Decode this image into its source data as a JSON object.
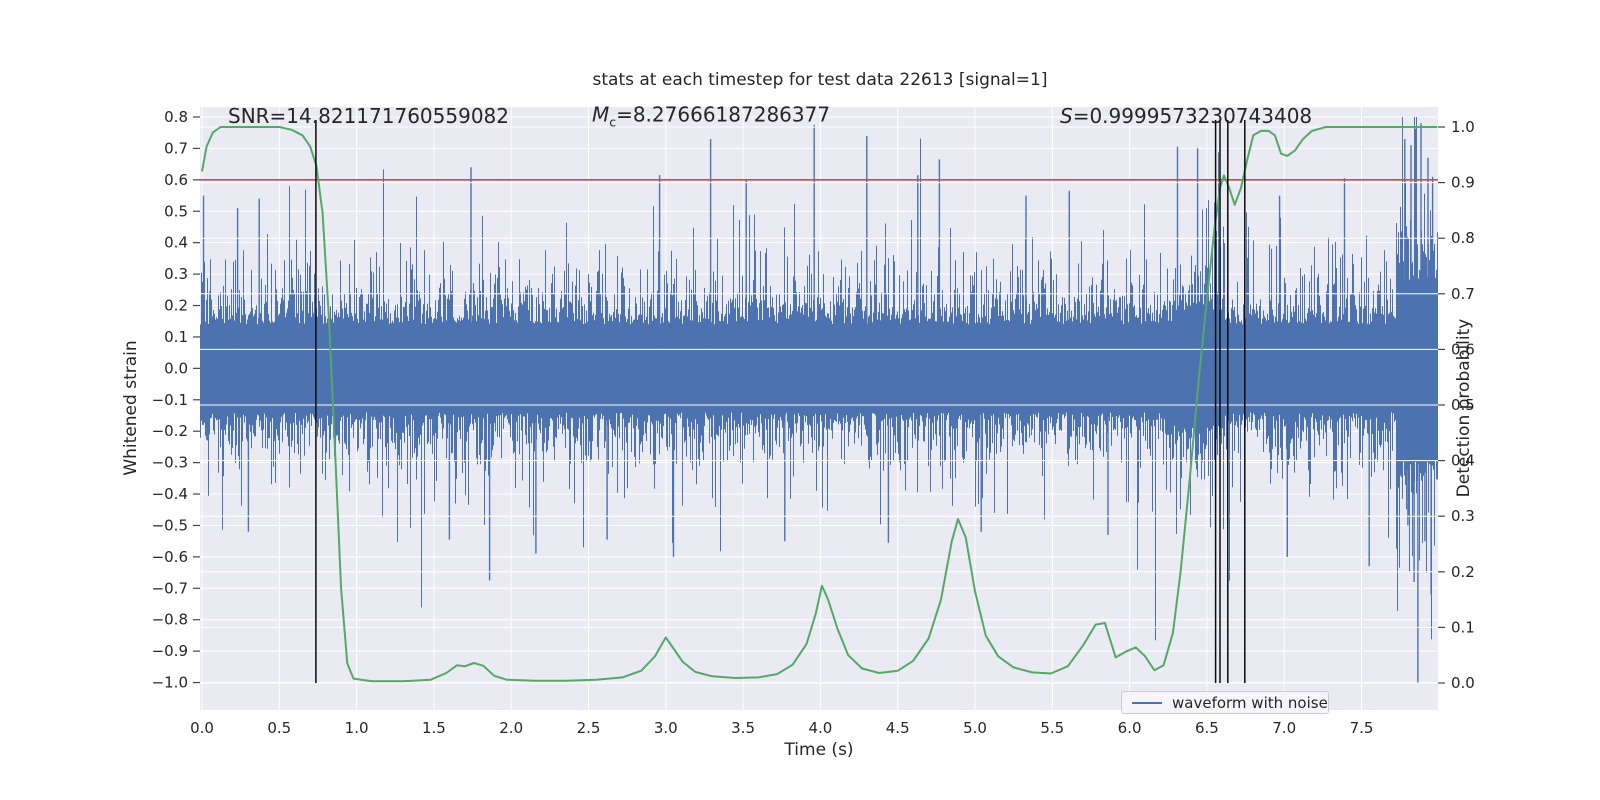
{
  "chart_data": {
    "type": "line",
    "title": "stats at each timestep for test data 22613 [signal=1]",
    "xlabel": "Time (s)",
    "ylabel_left": "Whitened strain",
    "ylabel_right": "Detection probability",
    "xlim": [
      0.0,
      8.0
    ],
    "ylim_left": [
      -1.087,
      0.832
    ],
    "ylim_right": [
      -0.05,
      1.05
    ],
    "grid": true,
    "x_ticks": [
      0.0,
      0.5,
      1.0,
      1.5,
      2.0,
      2.5,
      3.0,
      3.5,
      4.0,
      4.5,
      5.0,
      5.5,
      6.0,
      6.5,
      7.0,
      7.5
    ],
    "y_ticks_left": [
      0.8,
      0.7,
      0.6,
      0.5,
      0.4,
      0.3,
      0.2,
      0.1,
      0.0,
      -0.1,
      -0.2,
      -0.3,
      -0.4,
      -0.5,
      -0.6,
      -0.7,
      -0.8,
      -0.9,
      -1.0
    ],
    "y_ticks_right": [
      1.0,
      0.9,
      0.8,
      0.7,
      0.6,
      0.5,
      0.4,
      0.3,
      0.2,
      0.1,
      0.0
    ],
    "annotations": {
      "SNR": 14.821171760559082,
      "Mc": 8.27666187286377,
      "S": 0.9999573230743408
    },
    "annotations_text": {
      "snr": "SNR=14.821171760559082",
      "mc_main": "M",
      "mc_sub": "c",
      "mc_rest": "=8.27666187286377",
      "s_main": "S",
      "s_rest": "=0.9999573230743408"
    },
    "threshold_line": {
      "axis": "left",
      "value": 0.6,
      "right_axis_value": 0.9,
      "color": "#c44e52"
    },
    "event_vlines": {
      "times_s": [
        0.737,
        6.556,
        6.585,
        6.635,
        6.745
      ],
      "color": "#0c0c0c"
    },
    "legend": {
      "label": "waveform with noise",
      "position": "lower right"
    },
    "series": [
      {
        "name": "waveform with noise",
        "kind": "noise",
        "axis": "left",
        "color": "#4c72b0",
        "core_amplitude": 0.14,
        "tail_scale": 0.08,
        "seed": 22613,
        "signal_region_boost": {
          "t0": 6.28,
          "t1": 6.62,
          "gain": 1.3
        },
        "end_burst": {
          "t0": 7.72,
          "gain": 2.0
        },
        "spikes_up": [
          [
            0.01,
            0.55
          ],
          [
            0.23,
            0.51
          ],
          [
            0.37,
            0.54
          ],
          [
            1.74,
            0.64
          ],
          [
            2.96,
            0.615
          ],
          [
            3.29,
            0.73
          ],
          [
            3.52,
            0.6
          ],
          [
            3.96,
            0.775
          ],
          [
            4.3,
            0.74
          ],
          [
            4.63,
            0.615
          ],
          [
            4.77,
            0.665
          ],
          [
            5.33,
            0.55
          ],
          [
            5.61,
            0.565
          ],
          [
            6.31,
            0.705
          ],
          [
            6.44,
            0.7
          ],
          [
            6.97,
            0.55
          ],
          [
            7.39,
            0.605
          ],
          [
            7.78,
            0.73
          ],
          [
            7.82,
            0.71
          ],
          [
            7.885,
            0.78
          ],
          [
            7.93,
            0.67
          ],
          [
            7.96,
            0.61
          ]
        ],
        "spikes_down": [
          [
            0.3,
            -0.52
          ],
          [
            1.6,
            -0.545
          ],
          [
            1.86,
            -0.675
          ],
          [
            2.16,
            -0.59
          ],
          [
            2.62,
            -0.545
          ],
          [
            3.05,
            -0.6
          ],
          [
            3.77,
            -0.55
          ],
          [
            4.44,
            -0.555
          ],
          [
            5.04,
            -0.52
          ],
          [
            5.86,
            -0.53
          ],
          [
            7.02,
            -0.6
          ],
          [
            7.55,
            -0.63
          ],
          [
            7.8,
            -0.5
          ],
          [
            7.84,
            -0.68
          ],
          [
            7.865,
            -1.0
          ],
          [
            7.91,
            -0.55
          ],
          [
            7.95,
            -0.72
          ]
        ]
      },
      {
        "name": "detection probability",
        "kind": "line",
        "axis": "right",
        "color": "#55a868",
        "points": [
          [
            0.0,
            0.92
          ],
          [
            0.03,
            0.965
          ],
          [
            0.07,
            0.99
          ],
          [
            0.12,
            1.0
          ],
          [
            0.5,
            1.0
          ],
          [
            0.58,
            0.995
          ],
          [
            0.65,
            0.985
          ],
          [
            0.7,
            0.965
          ],
          [
            0.74,
            0.93
          ],
          [
            0.78,
            0.845
          ],
          [
            0.82,
            0.66
          ],
          [
            0.86,
            0.42
          ],
          [
            0.9,
            0.17
          ],
          [
            0.94,
            0.035
          ],
          [
            0.98,
            0.008
          ],
          [
            1.1,
            0.003
          ],
          [
            1.3,
            0.003
          ],
          [
            1.48,
            0.006
          ],
          [
            1.58,
            0.018
          ],
          [
            1.65,
            0.032
          ],
          [
            1.7,
            0.03
          ],
          [
            1.76,
            0.036
          ],
          [
            1.82,
            0.031
          ],
          [
            1.89,
            0.013
          ],
          [
            1.97,
            0.006
          ],
          [
            2.15,
            0.004
          ],
          [
            2.35,
            0.004
          ],
          [
            2.55,
            0.006
          ],
          [
            2.72,
            0.01
          ],
          [
            2.84,
            0.022
          ],
          [
            2.93,
            0.048
          ],
          [
            3.0,
            0.082
          ],
          [
            3.05,
            0.062
          ],
          [
            3.11,
            0.038
          ],
          [
            3.19,
            0.02
          ],
          [
            3.3,
            0.012
          ],
          [
            3.45,
            0.009
          ],
          [
            3.6,
            0.01
          ],
          [
            3.72,
            0.016
          ],
          [
            3.82,
            0.033
          ],
          [
            3.91,
            0.07
          ],
          [
            3.97,
            0.125
          ],
          [
            4.01,
            0.175
          ],
          [
            4.05,
            0.15
          ],
          [
            4.11,
            0.098
          ],
          [
            4.18,
            0.05
          ],
          [
            4.27,
            0.026
          ],
          [
            4.38,
            0.018
          ],
          [
            4.5,
            0.022
          ],
          [
            4.6,
            0.04
          ],
          [
            4.7,
            0.08
          ],
          [
            4.78,
            0.15
          ],
          [
            4.85,
            0.255
          ],
          [
            4.89,
            0.295
          ],
          [
            4.94,
            0.262
          ],
          [
            5.0,
            0.165
          ],
          [
            5.07,
            0.085
          ],
          [
            5.15,
            0.048
          ],
          [
            5.25,
            0.028
          ],
          [
            5.37,
            0.019
          ],
          [
            5.49,
            0.017
          ],
          [
            5.6,
            0.03
          ],
          [
            5.7,
            0.068
          ],
          [
            5.78,
            0.105
          ],
          [
            5.84,
            0.108
          ],
          [
            5.91,
            0.046
          ],
          [
            5.98,
            0.057
          ],
          [
            6.04,
            0.064
          ],
          [
            6.1,
            0.048
          ],
          [
            6.16,
            0.023
          ],
          [
            6.22,
            0.032
          ],
          [
            6.28,
            0.09
          ],
          [
            6.33,
            0.2
          ],
          [
            6.39,
            0.37
          ],
          [
            6.45,
            0.555
          ],
          [
            6.51,
            0.715
          ],
          [
            6.55,
            0.82
          ],
          [
            6.585,
            0.89
          ],
          [
            6.61,
            0.913
          ],
          [
            6.645,
            0.89
          ],
          [
            6.68,
            0.86
          ],
          [
            6.72,
            0.89
          ],
          [
            6.76,
            0.94
          ],
          [
            6.8,
            0.985
          ],
          [
            6.85,
            0.993
          ],
          [
            6.9,
            0.993
          ],
          [
            6.94,
            0.985
          ],
          [
            6.98,
            0.952
          ],
          [
            7.02,
            0.948
          ],
          [
            7.07,
            0.958
          ],
          [
            7.12,
            0.978
          ],
          [
            7.18,
            0.993
          ],
          [
            7.27,
            1.0
          ],
          [
            7.6,
            1.0
          ],
          [
            7.99,
            1.0
          ]
        ]
      }
    ],
    "colors": {
      "axes_background": "#eaeaf2",
      "grid": "#ffffff",
      "text": "#262626",
      "noise_blue": "#4c72b0",
      "probability_green": "#55a868",
      "threshold_red": "#c44e52",
      "vline_black": "#0c0c0c"
    }
  }
}
